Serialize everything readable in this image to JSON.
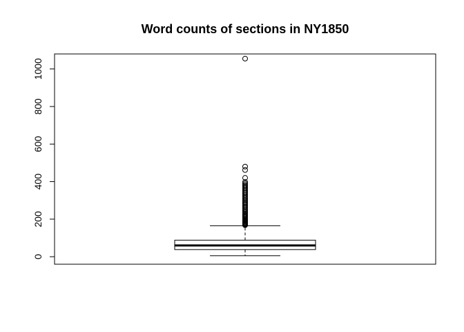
{
  "chart_data": {
    "type": "boxplot",
    "title": "Word counts of sections in NY1850",
    "xlabel": "",
    "ylabel": "",
    "ylim": [
      -40,
      1080
    ],
    "yticks": [
      0,
      200,
      400,
      600,
      800,
      1000
    ],
    "ytick_labels": [
      "0",
      "200",
      "400",
      "600",
      "800",
      "1000"
    ],
    "grid": false,
    "legend": "none",
    "box": {
      "whisker_low": 5,
      "q1": 38,
      "median": 60,
      "q3": 88,
      "whisker_high": 165
    },
    "outliers": [
      1055,
      480,
      462,
      420,
      398,
      390,
      383,
      377,
      371,
      365,
      358,
      352,
      345,
      340,
      333,
      327,
      320,
      314,
      308,
      302,
      296,
      290,
      284,
      278,
      272,
      266,
      260,
      254,
      248,
      242,
      236,
      230,
      225,
      220,
      215,
      210,
      205,
      200,
      196,
      192,
      188,
      184,
      180,
      177,
      174,
      171,
      168
    ]
  }
}
